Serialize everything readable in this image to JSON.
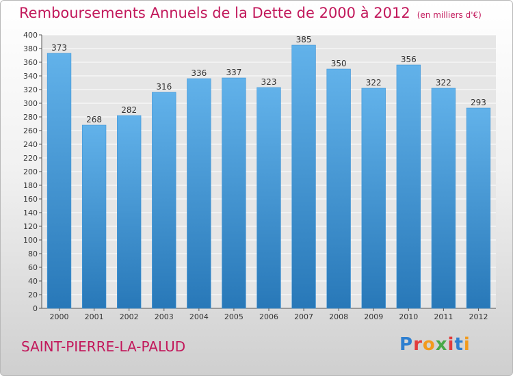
{
  "header": {
    "title": "Remboursements Annuels de la Dette de 2000 à 2012",
    "unit": "(en milliers d'€)"
  },
  "footer": {
    "place": "SAINT-PIERRE-LA-PALUD",
    "logo_text": "Proxiti",
    "logo_letters": [
      "P",
      "r",
      "o",
      "x",
      "i",
      "t",
      "i"
    ]
  },
  "chart_data": {
    "type": "bar",
    "categories": [
      "2000",
      "2001",
      "2002",
      "2003",
      "2004",
      "2005",
      "2006",
      "2007",
      "2008",
      "2009",
      "2010",
      "2011",
      "2012"
    ],
    "values": [
      373,
      268,
      282,
      316,
      336,
      337,
      323,
      385,
      350,
      322,
      356,
      322,
      293
    ],
    "ylim": [
      0,
      400
    ],
    "ytick_step": 20,
    "grid": true,
    "bar_color_top": "#62b2ea",
    "bar_color_bottom": "#2878b8",
    "axis_text_color": "#333333"
  }
}
